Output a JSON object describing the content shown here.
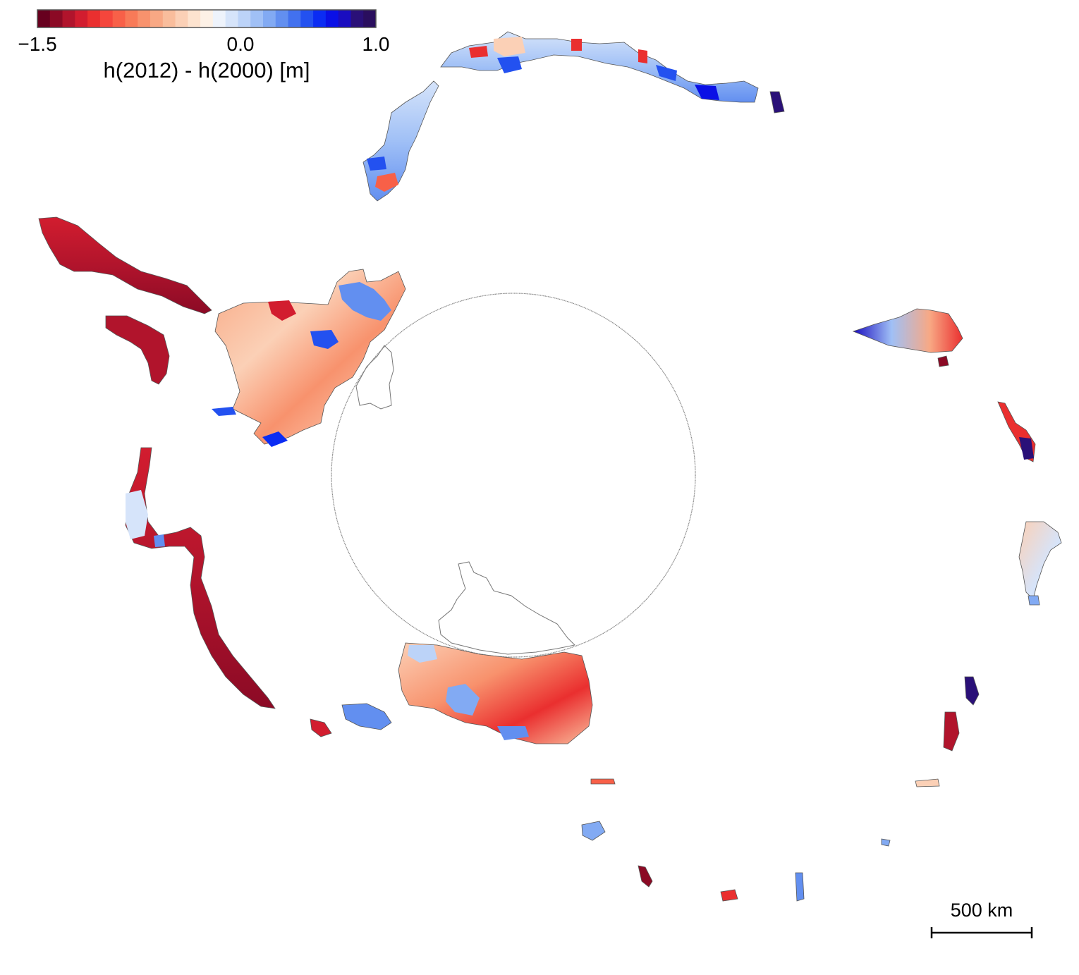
{
  "colorbar": {
    "title": "h(2012) - h(2000) [m]",
    "min": -1.5,
    "max": 1.0,
    "tick_labels": [
      "−1.5",
      "0.0",
      "1.0"
    ],
    "tick_values": [
      -1.5,
      0.0,
      1.0
    ],
    "colors": [
      "#67001f",
      "#8b0a25",
      "#b1142c",
      "#d21d2f",
      "#ea2f2f",
      "#f5463c",
      "#f86048",
      "#f87a58",
      "#f8926d",
      "#f8a884",
      "#f9bd9c",
      "#fbd0b6",
      "#fde3cf",
      "#fdf1e6",
      "#eef3fb",
      "#d6e4fa",
      "#bcd3f8",
      "#a0c0f6",
      "#82aaf3",
      "#628ff0",
      "#4271ef",
      "#2351f0",
      "#0b2cf3",
      "#0a10e6",
      "#1a0dc0",
      "#2a1078",
      "#2a0e5e"
    ]
  },
  "scale_bar": {
    "label": "500 km"
  },
  "colors": {
    "coastline": "#555555",
    "pole_circle": "#888888",
    "ice_shelf_outline": "#777777"
  }
}
